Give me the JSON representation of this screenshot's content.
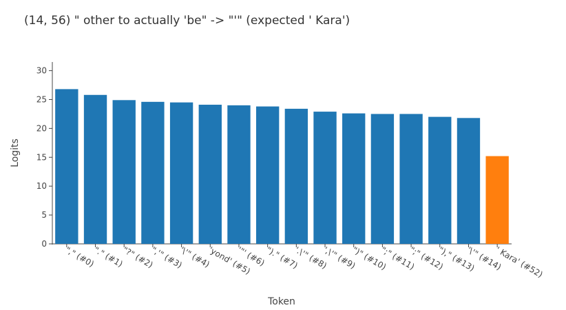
{
  "chart_data": {
    "type": "bar",
    "title": "(14, 56) \" other to actually 'be\" -> \"'\" (expected ' Kara')",
    "xlabel": "Token",
    "ylabel": "Logits",
    "ylim": [
      0,
      31.5
    ],
    "yticks": [
      0,
      5,
      10,
      15,
      20,
      25,
      30
    ],
    "grid": false,
    "legend": "none",
    "categories": [
      "\",\" (#0)",
      "\".\" (#1)",
      "\"?\" (#2)",
      "\",'\" (#3)",
      "'\\'\" (#4)",
      "'yond' (#5)",
      "'\"' (#6)",
      "\").\" (#7)",
      "'.\\'\" (#8)",
      "',\\'\" (#9)",
      "\")\" (#10)",
      "\";\" (#11)",
      "\";\" (#12)",
      "\"),\" (#13)",
      "'\\'\" (#14)",
      "' Kara' (#52)"
    ],
    "values": [
      26.8,
      25.8,
      24.9,
      24.6,
      24.5,
      24.1,
      24.0,
      23.8,
      23.4,
      22.9,
      22.6,
      22.5,
      22.5,
      22.0,
      21.8,
      15.2
    ],
    "colors": [
      "#1f77b4",
      "#1f77b4",
      "#1f77b4",
      "#1f77b4",
      "#1f77b4",
      "#1f77b4",
      "#1f77b4",
      "#1f77b4",
      "#1f77b4",
      "#1f77b4",
      "#1f77b4",
      "#1f77b4",
      "#1f77b4",
      "#1f77b4",
      "#1f77b4",
      "#ff7f0e"
    ]
  }
}
